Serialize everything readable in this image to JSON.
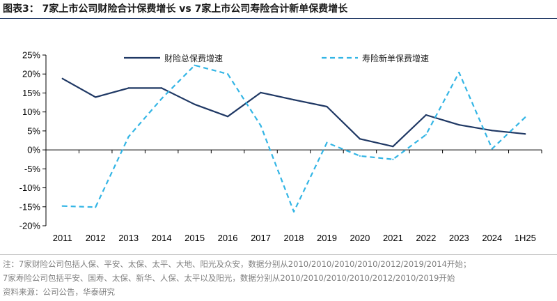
{
  "title": "图表3： 7家上市公司财险合计保费增长 vs 7家上市公司寿险合计新单保费增长",
  "notes": [
    "注：7家财险公司包括人保、平安、太保、太平、大地、阳光及众安，数据分别从2010/2010/2010/2010/2012/2019/2014开始；",
    "7家寿险公司包括平安、国寿、太保、新华、人保、太平以及阳光，数据分别从2010/2010/2010/2010/2012/2010/2019开始",
    "资料来源：公司公告，华泰研究"
  ],
  "chart_data": {
    "type": "line",
    "categories": [
      "2011",
      "2012",
      "2013",
      "2014",
      "2015",
      "2016",
      "2017",
      "2018",
      "2019",
      "2020",
      "2021",
      "2022",
      "2023",
      "2024",
      "1H25"
    ],
    "y_ticks": [
      "25%",
      "20%",
      "15%",
      "10%",
      "5%",
      "0%",
      "-5%",
      "-10%",
      "-15%",
      "-20%"
    ],
    "ylim": [
      -20,
      25
    ],
    "legend_position": "top",
    "series": [
      {
        "name": "财险总保费增速",
        "color": "#1f3864",
        "style": "solid",
        "values": [
          18.8,
          13.9,
          16.3,
          16.3,
          12.0,
          8.8,
          15.1,
          13.2,
          11.4,
          2.9,
          0.9,
          9.2,
          6.6,
          5.1,
          4.2
        ]
      },
      {
        "name": "寿险新单保费增速",
        "color": "#33b5e5",
        "style": "dashed",
        "values": [
          -14.8,
          -15.1,
          3.5,
          13.5,
          22.3,
          20.0,
          6.4,
          -16.3,
          1.9,
          -1.6,
          -2.5,
          4.0,
          20.4,
          0.3,
          8.6
        ]
      }
    ]
  }
}
